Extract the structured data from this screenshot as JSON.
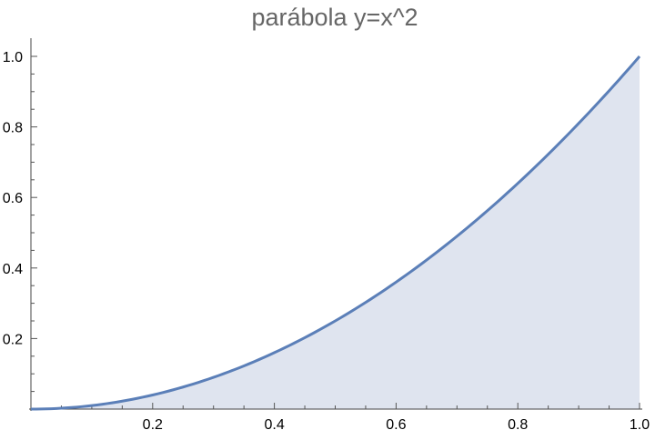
{
  "chart_data": {
    "type": "area",
    "title": "parábola y=x^2",
    "xlabel": "",
    "ylabel": "",
    "function": "x^2",
    "xlim": [
      0,
      1
    ],
    "ylim": [
      0,
      1
    ],
    "x_ticks": [
      0.2,
      0.4,
      0.6,
      0.8,
      1.0
    ],
    "x_tick_labels": [
      "0.2",
      "0.4",
      "0.6",
      "0.8",
      "1.0"
    ],
    "y_ticks": [
      0.2,
      0.4,
      0.6,
      0.8,
      1.0
    ],
    "y_tick_labels": [
      "0.2",
      "0.4",
      "0.6",
      "0.8",
      "1.0"
    ],
    "grid": false,
    "series": [
      {
        "x": [
          0,
          0.1,
          0.2,
          0.3,
          0.4,
          0.5,
          0.6,
          0.7,
          0.8,
          0.9,
          1.0
        ],
        "y": [
          0,
          0.01,
          0.04,
          0.09,
          0.16,
          0.25,
          0.36,
          0.49,
          0.64,
          0.81,
          1.0
        ],
        "color": "#5b7fb8",
        "fill_color": "#dfe4ef"
      }
    ]
  }
}
